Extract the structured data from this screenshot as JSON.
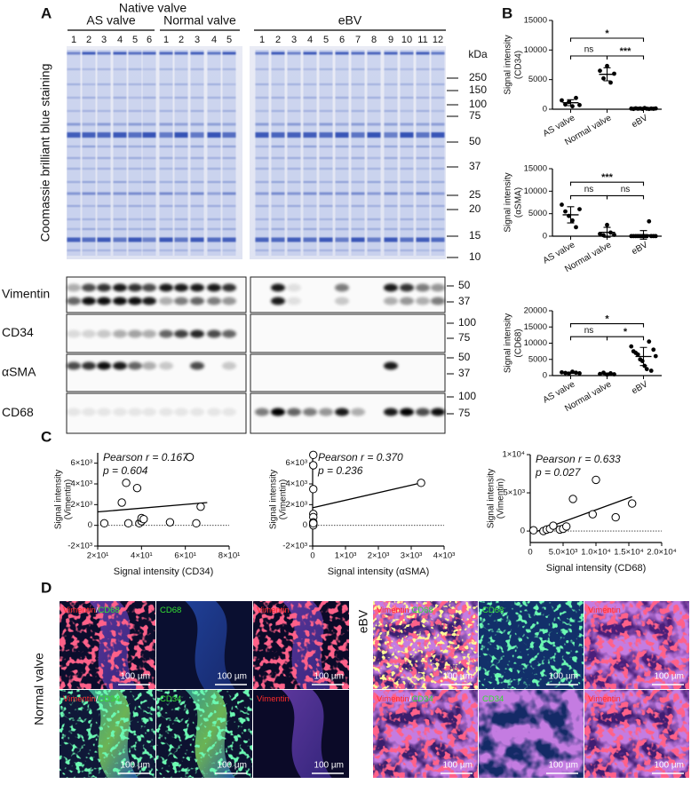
{
  "panel_a": {
    "label": "A",
    "native_valve": "Native valve",
    "groups": [
      {
        "name": "AS valve",
        "lanes": [
          1,
          2,
          3,
          4,
          5,
          6
        ]
      },
      {
        "name": "Normal valve",
        "lanes": [
          1,
          2,
          3,
          4,
          5
        ]
      },
      {
        "name": "eBV",
        "lanes": [
          1,
          2,
          3,
          4,
          5,
          6,
          7,
          8,
          9,
          10,
          11,
          12
        ]
      }
    ],
    "stain": "Coomassie brilliant blue staining",
    "unit": "kDa",
    "markers": [
      250,
      150,
      100,
      75,
      50,
      37,
      25,
      20,
      15,
      10
    ],
    "blots": [
      {
        "name": "Vimentin",
        "markers": [
          50,
          37
        ]
      },
      {
        "name": "CD34",
        "markers": [
          100,
          75
        ]
      },
      {
        "name": "αSMA",
        "markers": [
          50,
          37
        ]
      },
      {
        "name": "CD68",
        "markers": [
          100,
          75
        ]
      }
    ]
  },
  "panel_b": {
    "label": "B"
  },
  "panel_c": {
    "label": "C"
  },
  "chart_data": [
    {
      "type": "dot",
      "ylabel": [
        "Signal intensity",
        "(CD34)"
      ],
      "categories": [
        "AS valve",
        "Normal valve",
        "eBV"
      ],
      "values": [
        [
          1500,
          800,
          1200,
          500,
          1900,
          700
        ],
        [
          6500,
          5200,
          7300,
          4500,
          6000
        ],
        [
          100,
          50,
          150,
          80,
          120,
          60,
          200,
          90,
          40,
          110,
          70,
          130
        ]
      ],
      "means": [
        1100,
        5900,
        100
      ],
      "sds": [
        500,
        1100,
        50
      ],
      "ylim": [
        0,
        15000
      ],
      "yticks": [
        0,
        5000,
        10000,
        15000
      ],
      "comparisons": [
        {
          "pair": [
            0,
            1
          ],
          "label": "ns"
        },
        {
          "pair": [
            1,
            2
          ],
          "label": "***"
        },
        {
          "pair": [
            0,
            2
          ],
          "label": "*"
        }
      ],
      "color": "#000000"
    },
    {
      "type": "dot",
      "ylabel": [
        "Signal intensity",
        "(αSMA)"
      ],
      "categories": [
        "AS valve",
        "Normal valve",
        "eBV"
      ],
      "values": [
        [
          7000,
          5500,
          4500,
          3500,
          2000,
          6000
        ],
        [
          500,
          200,
          2500,
          800,
          300
        ],
        [
          20,
          20,
          20,
          20,
          20,
          20,
          20,
          20,
          3300,
          20,
          20,
          20
        ]
      ],
      "means": [
        4750,
        860,
        290
      ],
      "sds": [
        1800,
        1100,
        950
      ],
      "ylim": [
        0,
        15000
      ],
      "yticks": [
        0,
        5000,
        10000,
        15000
      ],
      "comparisons": [
        {
          "pair": [
            0,
            1
          ],
          "label": "ns"
        },
        {
          "pair": [
            1,
            2
          ],
          "label": "ns"
        },
        {
          "pair": [
            0,
            2
          ],
          "label": "***"
        }
      ],
      "color": "#000000"
    },
    {
      "type": "dot",
      "ylabel": [
        "Signal intensity",
        "(CD68)"
      ],
      "categories": [
        "AS valve",
        "Normal valve",
        "eBV"
      ],
      "values": [
        [
          1000,
          800,
          600,
          1200,
          900,
          700
        ],
        [
          500,
          900,
          300,
          700,
          400
        ],
        [
          9000,
          7500,
          7000,
          6500,
          5000,
          4500,
          3000,
          2000,
          10500,
          1500,
          8000,
          6000
        ]
      ],
      "means": [
        870,
        560,
        5900
      ],
      "sds": [
        220,
        240,
        2800
      ],
      "ylim": [
        0,
        20000
      ],
      "yticks": [
        0,
        5000,
        10000,
        15000,
        20000
      ],
      "comparisons": [
        {
          "pair": [
            0,
            1
          ],
          "label": "ns"
        },
        {
          "pair": [
            1,
            2
          ],
          "label": "*"
        },
        {
          "pair": [
            0,
            2
          ],
          "label": "*"
        }
      ],
      "color": "#000000"
    },
    {
      "type": "scatter",
      "xlabel": "Signal intensity (CD34)",
      "ylabel": [
        "Signal intensity",
        "(Vimentin)"
      ],
      "annotations": [
        "Pearson r = 0.167",
        "p = 0.604"
      ],
      "x": [
        23,
        31,
        33,
        34,
        38,
        39,
        40,
        40,
        41,
        53,
        62,
        65,
        67
      ],
      "y": [
        200,
        2200,
        4100,
        200,
        3600,
        200,
        400,
        700,
        600,
        300,
        6600,
        200,
        1800
      ],
      "fit": {
        "x": [
          20,
          70
        ],
        "y": [
          1300,
          2200
        ]
      },
      "xlim": [
        20,
        80
      ],
      "xticks": [
        {
          "value": 20,
          "label": "2×10¹"
        },
        {
          "value": 40,
          "label": "4×10¹"
        },
        {
          "value": 60,
          "label": "6×10¹"
        },
        {
          "value": 80,
          "label": "8×10¹"
        }
      ],
      "ylim": [
        -2000,
        7000
      ],
      "yticks": [
        {
          "value": -2000,
          "label": "-2×10³"
        },
        0,
        {
          "value": 2000,
          "label": "2×10³"
        },
        {
          "value": 4000,
          "label": "4×10³"
        },
        {
          "value": 6000,
          "label": "6×10³"
        }
      ],
      "zero_line": true,
      "color": "#000000"
    },
    {
      "type": "scatter",
      "xlabel": "Signal intensity (αSMA)",
      "ylabel": [
        "Signal intensity",
        "(Vimentin)"
      ],
      "annotations": [
        "Pearson r = 0.370",
        "p = 0.236"
      ],
      "x": [
        20,
        20,
        20,
        20,
        20,
        20,
        20,
        20,
        20,
        3300
      ],
      "y": [
        6800,
        5800,
        3500,
        1100,
        800,
        300,
        100,
        0,
        200,
        4100
      ],
      "fit": {
        "x": [
          0,
          3300
        ],
        "y": [
          1700,
          4100
        ]
      },
      "xlim": [
        0,
        4000
      ],
      "xticks": [
        0,
        {
          "value": 1000,
          "label": "1×10³"
        },
        {
          "value": 2000,
          "label": "2×10³"
        },
        {
          "value": 3000,
          "label": "3×10³"
        },
        {
          "value": 4000,
          "label": "4×10³"
        }
      ],
      "ylim": [
        -2000,
        7000
      ],
      "yticks": [
        {
          "value": -2000,
          "label": "-2×10³"
        },
        0,
        {
          "value": 2000,
          "label": "2×10³"
        },
        {
          "value": 4000,
          "label": "4×10³"
        },
        {
          "value": 6000,
          "label": "6×10³"
        }
      ],
      "zero_line": true,
      "color": "#000000"
    },
    {
      "type": "scatter",
      "xlabel": "Signal intensity (CD68)",
      "ylabel": [
        "Signal intensity",
        "(Vimentin)"
      ],
      "annotations": [
        "Pearson r = 0.633",
        "p = 0.027"
      ],
      "x": [
        500,
        2000,
        2500,
        3000,
        3500,
        4500,
        5000,
        5500,
        6500,
        9500,
        10000,
        13000,
        15500
      ],
      "y": [
        100,
        0,
        200,
        300,
        700,
        200,
        300,
        600,
        4200,
        2200,
        6700,
        1800,
        3600
      ],
      "fit": {
        "x": [
          500,
          15500
        ],
        "y": [
          -200,
          4500
        ]
      },
      "xlim": [
        0,
        20000
      ],
      "xticks": [
        0,
        {
          "value": 5000,
          "label": "5.0×10³"
        },
        {
          "value": 10000,
          "label": "1.0×10⁴"
        },
        {
          "value": 15000,
          "label": "1.5×10⁴"
        },
        {
          "value": 20000,
          "label": "2.0×10⁴"
        }
      ],
      "ylim": [
        -1500,
        10000
      ],
      "yticks": [
        0,
        {
          "value": 5000,
          "label": "5×10³"
        },
        {
          "value": 10000,
          "label": "1×10⁴"
        }
      ],
      "zero_line": true,
      "color": "#000000"
    }
  ],
  "panel_d": {
    "label": "D",
    "scale_bar": "100 µm",
    "separator": "/",
    "channel_colors": {
      "Vimentin": "#ff2b2b",
      "CD68": "#33e033",
      "CD34": "#33e033"
    },
    "groups": [
      {
        "name": "Normal valve",
        "rows": [
          [
            [
              "Vimentin",
              "CD68"
            ],
            [
              "CD68"
            ],
            [
              "Vimentin"
            ]
          ],
          [
            [
              "Vimentin",
              "CD34"
            ],
            [
              "CD34"
            ],
            [
              "Vimentin"
            ]
          ]
        ]
      },
      {
        "name": "eBV",
        "rows": [
          [
            [
              "Vimentin",
              "CD68"
            ],
            [
              "CD68"
            ],
            [
              "Vimentin"
            ]
          ],
          [
            [
              "Vimentin",
              "CD34"
            ],
            [
              "CD34"
            ],
            [
              "Vimentin"
            ]
          ]
        ]
      }
    ]
  }
}
